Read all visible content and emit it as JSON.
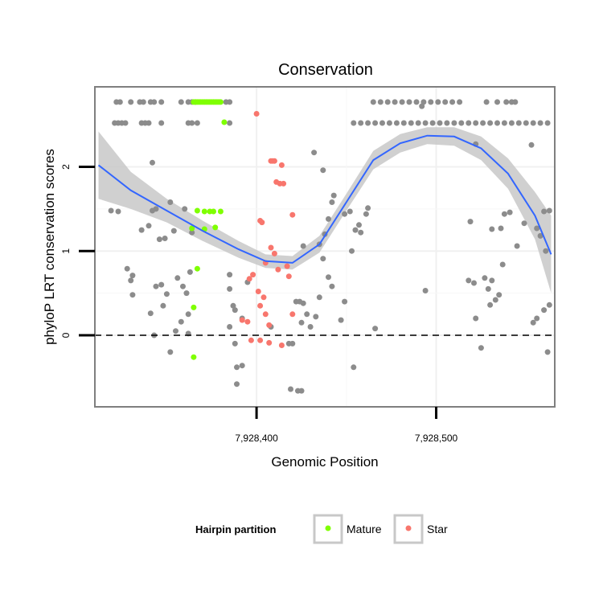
{
  "chart_data": {
    "type": "scatter",
    "title": "Conservation",
    "xlabel": "Genomic Position",
    "ylabel": "phyloP LRT conservation scores",
    "xlim": [
      7928310,
      7928566
    ],
    "ylim": [
      -0.85,
      2.95
    ],
    "x_ticks": [
      7928400,
      7928500
    ],
    "x_tick_labels": [
      "7,928,400",
      "7,928,500"
    ],
    "y_ticks": [
      0,
      1,
      2
    ],
    "y_tick_labels": [
      "0",
      "1",
      "2"
    ],
    "reference_line": {
      "y": 0,
      "style": "dashed"
    },
    "grid": true,
    "legend": {
      "title": "Hairpin partition",
      "position": "bottom",
      "entries": [
        {
          "label": "Mature",
          "color": "#7fff00"
        },
        {
          "label": "Star",
          "color": "#f8766d"
        }
      ]
    },
    "colors": {
      "other": "#8c8c8c",
      "mature": "#7fff00",
      "star": "#f8766d",
      "smooth": "#3366ff",
      "ribbon": "#c8c8c8"
    },
    "smooth": {
      "x": [
        7928312,
        7928330,
        7928350,
        7928370,
        7928390,
        7928405,
        7928420,
        7928435,
        7928450,
        7928465,
        7928480,
        7928495,
        7928510,
        7928525,
        7928540,
        7928555,
        7928564
      ],
      "y": [
        2.02,
        1.72,
        1.48,
        1.24,
        1.02,
        0.88,
        0.86,
        1.08,
        1.58,
        2.08,
        2.28,
        2.37,
        2.36,
        2.22,
        1.92,
        1.42,
        0.96
      ],
      "lower": [
        1.62,
        1.5,
        1.34,
        1.12,
        0.92,
        0.8,
        0.78,
        0.98,
        1.48,
        1.97,
        2.17,
        2.27,
        2.25,
        2.08,
        1.74,
        1.14,
        0.5
      ],
      "upper": [
        2.42,
        1.94,
        1.62,
        1.36,
        1.12,
        0.96,
        0.94,
        1.18,
        1.68,
        2.19,
        2.39,
        2.47,
        2.47,
        2.36,
        2.1,
        1.7,
        1.42
      ]
    },
    "series": [
      {
        "name": "Mature",
        "points": [
          [
            7928365,
            2.77
          ],
          [
            7928366,
            2.77
          ],
          [
            7928367,
            2.77
          ],
          [
            7928368,
            2.77
          ],
          [
            7928369,
            2.77
          ],
          [
            7928370,
            2.77
          ],
          [
            7928371,
            2.77
          ],
          [
            7928372,
            2.77
          ],
          [
            7928373,
            2.77
          ],
          [
            7928374,
            2.77
          ],
          [
            7928375,
            2.77
          ],
          [
            7928376,
            2.77
          ],
          [
            7928377,
            2.77
          ],
          [
            7928378,
            2.77
          ],
          [
            7928379,
            2.77
          ],
          [
            7928380,
            2.77
          ],
          [
            7928382,
            2.53
          ],
          [
            7928367,
            1.48
          ],
          [
            7928371,
            1.47
          ],
          [
            7928374,
            1.47
          ],
          [
            7928376,
            1.47
          ],
          [
            7928380,
            1.47
          ],
          [
            7928364,
            1.27
          ],
          [
            7928371,
            1.26
          ],
          [
            7928377,
            1.28
          ],
          [
            7928367,
            0.79
          ],
          [
            7928365,
            0.33
          ],
          [
            7928365,
            -0.26
          ]
        ]
      },
      {
        "name": "Star",
        "points": [
          [
            7928400,
            2.63
          ],
          [
            7928408,
            2.07
          ],
          [
            7928409,
            2.07
          ],
          [
            7928410,
            2.07
          ],
          [
            7928414,
            2.02
          ],
          [
            7928411,
            1.82
          ],
          [
            7928413,
            1.8
          ],
          [
            7928415,
            1.8
          ],
          [
            7928420,
            1.43
          ],
          [
            7928402,
            1.36
          ],
          [
            7928403,
            1.34
          ],
          [
            7928408,
            1.04
          ],
          [
            7928410,
            0.97
          ],
          [
            7928405,
            0.86
          ],
          [
            7928417,
            0.82
          ],
          [
            7928398,
            0.72
          ],
          [
            7928396,
            0.67
          ],
          [
            7928412,
            0.78
          ],
          [
            7928418,
            0.7
          ],
          [
            7928401,
            0.52
          ],
          [
            7928404,
            0.45
          ],
          [
            7928402,
            0.35
          ],
          [
            7928405,
            0.25
          ],
          [
            7928420,
            0.25
          ],
          [
            7928392,
            0.18
          ],
          [
            7928395,
            0.16
          ],
          [
            7928407,
            0.12
          ],
          [
            7928397,
            -0.06
          ],
          [
            7928402,
            -0.06
          ],
          [
            7928407,
            -0.09
          ],
          [
            7928414,
            -0.12
          ]
        ]
      },
      {
        "name": "",
        "points": [
          [
            7928322,
            2.77
          ],
          [
            7928324,
            2.77
          ],
          [
            7928330,
            2.77
          ],
          [
            7928335,
            2.77
          ],
          [
            7928337,
            2.77
          ],
          [
            7928341,
            2.77
          ],
          [
            7928343,
            2.77
          ],
          [
            7928347,
            2.77
          ],
          [
            7928358,
            2.77
          ],
          [
            7928362,
            2.77
          ],
          [
            7928364,
            2.77
          ],
          [
            7928366,
            2.77
          ],
          [
            7928383,
            2.77
          ],
          [
            7928385,
            2.77
          ],
          [
            7928321,
            2.52
          ],
          [
            7928323,
            2.52
          ],
          [
            7928325,
            2.52
          ],
          [
            7928327,
            2.52
          ],
          [
            7928336,
            2.52
          ],
          [
            7928338,
            2.52
          ],
          [
            7928340,
            2.52
          ],
          [
            7928347,
            2.52
          ],
          [
            7928362,
            2.52
          ],
          [
            7928364,
            2.52
          ],
          [
            7928367,
            2.52
          ],
          [
            7928385,
            2.52
          ],
          [
            7928342,
            2.05
          ],
          [
            7928319,
            1.48
          ],
          [
            7928323,
            1.47
          ],
          [
            7928336,
            1.25
          ],
          [
            7928340,
            1.3
          ],
          [
            7928342,
            1.48
          ],
          [
            7928344,
            1.5
          ],
          [
            7928352,
            1.58
          ],
          [
            7928346,
            1.14
          ],
          [
            7928349,
            1.15
          ],
          [
            7928354,
            1.24
          ],
          [
            7928360,
            1.5
          ],
          [
            7928328,
            0.79
          ],
          [
            7928330,
            0.65
          ],
          [
            7928331,
            0.71
          ],
          [
            7928331,
            0.48
          ],
          [
            7928344,
            0.58
          ],
          [
            7928347,
            0.6
          ],
          [
            7928341,
            0.26
          ],
          [
            7928348,
            0.35
          ],
          [
            7928350,
            0.49
          ],
          [
            7928356,
            0.68
          ],
          [
            7928359,
            0.58
          ],
          [
            7928361,
            0.5
          ],
          [
            7928362,
            0.25
          ],
          [
            7928363,
            0.75
          ],
          [
            7928364,
            1.22
          ],
          [
            7928358,
            0.16
          ],
          [
            7928362,
            0.02
          ],
          [
            7928355,
            0.05
          ],
          [
            7928343,
            0.0
          ],
          [
            7928352,
            -0.2
          ],
          [
            7928385,
            0.72
          ],
          [
            7928387,
            0.35
          ],
          [
            7928388,
            0.3
          ],
          [
            7928385,
            0.55
          ],
          [
            7928385,
            0.1
          ],
          [
            7928388,
            -0.1
          ],
          [
            7928389,
            -0.38
          ],
          [
            7928389,
            -0.58
          ],
          [
            7928392,
            -0.36
          ],
          [
            7928392,
            0.2
          ],
          [
            7928395,
            0.63
          ],
          [
            7928408,
            0.1
          ],
          [
            7928419,
            -0.64
          ],
          [
            7928423,
            -0.66
          ],
          [
            7928425,
            -0.66
          ],
          [
            7928418,
            -0.1
          ],
          [
            7928420,
            -0.1
          ],
          [
            7928422,
            0.4
          ],
          [
            7928424,
            0.4
          ],
          [
            7928426,
            0.38
          ],
          [
            7928428,
            0.25
          ],
          [
            7928430,
            0.1
          ],
          [
            7928433,
            0.22
          ],
          [
            7928425,
            0.15
          ],
          [
            7928435,
            0.45
          ],
          [
            7928442,
            0.58
          ],
          [
            7928440,
            0.69
          ],
          [
            7928437,
            0.91
          ],
          [
            7928435,
            1.08
          ],
          [
            7928426,
            1.06
          ],
          [
            7928438,
            1.2
          ],
          [
            7928440,
            1.38
          ],
          [
            7928442,
            1.58
          ],
          [
            7928443,
            1.66
          ],
          [
            7928432,
            2.17
          ],
          [
            7928437,
            1.96
          ],
          [
            7928449,
            1.44
          ],
          [
            7928452,
            1.47
          ],
          [
            7928455,
            1.25
          ],
          [
            7928457,
            1.31
          ],
          [
            7928458,
            1.22
          ],
          [
            7928453,
            1.0
          ],
          [
            7928447,
            0.18
          ],
          [
            7928449,
            0.4
          ],
          [
            7928454,
            -0.38
          ],
          [
            7928461,
            1.44
          ],
          [
            7928462,
            1.51
          ],
          [
            7928466,
            0.08
          ],
          [
            7928454,
            2.52
          ],
          [
            7928458,
            2.52
          ],
          [
            7928462,
            2.52
          ],
          [
            7928466,
            2.52
          ],
          [
            7928470,
            2.52
          ],
          [
            7928474,
            2.52
          ],
          [
            7928478,
            2.52
          ],
          [
            7928482,
            2.52
          ],
          [
            7928486,
            2.52
          ],
          [
            7928490,
            2.52
          ],
          [
            7928494,
            2.52
          ],
          [
            7928498,
            2.52
          ],
          [
            7928502,
            2.52
          ],
          [
            7928506,
            2.52
          ],
          [
            7928510,
            2.52
          ],
          [
            7928514,
            2.52
          ],
          [
            7928518,
            2.52
          ],
          [
            7928522,
            2.52
          ],
          [
            7928526,
            2.52
          ],
          [
            7928530,
            2.52
          ],
          [
            7928534,
            2.52
          ],
          [
            7928538,
            2.52
          ],
          [
            7928542,
            2.52
          ],
          [
            7928546,
            2.52
          ],
          [
            7928550,
            2.52
          ],
          [
            7928554,
            2.52
          ],
          [
            7928558,
            2.52
          ],
          [
            7928562,
            2.52
          ],
          [
            7928465,
            2.77
          ],
          [
            7928469,
            2.77
          ],
          [
            7928473,
            2.77
          ],
          [
            7928477,
            2.77
          ],
          [
            7928481,
            2.77
          ],
          [
            7928485,
            2.77
          ],
          [
            7928489,
            2.77
          ],
          [
            7928493,
            2.77
          ],
          [
            7928497,
            2.77
          ],
          [
            7928501,
            2.77
          ],
          [
            7928505,
            2.77
          ],
          [
            7928509,
            2.77
          ],
          [
            7928513,
            2.77
          ],
          [
            7928528,
            2.77
          ],
          [
            7928534,
            2.77
          ],
          [
            7928539,
            2.77
          ],
          [
            7928542,
            2.77
          ],
          [
            7928544,
            2.77
          ],
          [
            7928492,
            2.72
          ],
          [
            7928522,
            2.27
          ],
          [
            7928553,
            2.26
          ],
          [
            7928519,
            1.35
          ],
          [
            7928531,
            1.26
          ],
          [
            7928536,
            1.27
          ],
          [
            7928538,
            1.44
          ],
          [
            7928541,
            1.46
          ],
          [
            7928549,
            1.33
          ],
          [
            7928556,
            1.27
          ],
          [
            7928560,
            1.47
          ],
          [
            7928563,
            1.48
          ],
          [
            7928545,
            1.06
          ],
          [
            7928561,
            1.0
          ],
          [
            7928558,
            1.18
          ],
          [
            7928537,
            0.84
          ],
          [
            7928527,
            0.68
          ],
          [
            7928531,
            0.65
          ],
          [
            7928529,
            0.55
          ],
          [
            7928535,
            0.48
          ],
          [
            7928533,
            0.42
          ],
          [
            7928530,
            0.36
          ],
          [
            7928494,
            0.53
          ],
          [
            7928518,
            0.65
          ],
          [
            7928521,
            0.62
          ],
          [
            7928522,
            0.2
          ],
          [
            7928525,
            -0.15
          ],
          [
            7928554,
            0.15
          ],
          [
            7928560,
            0.3
          ],
          [
            7928563,
            0.36
          ],
          [
            7928556,
            0.2
          ],
          [
            7928562,
            -0.2
          ]
        ]
      }
    ]
  }
}
